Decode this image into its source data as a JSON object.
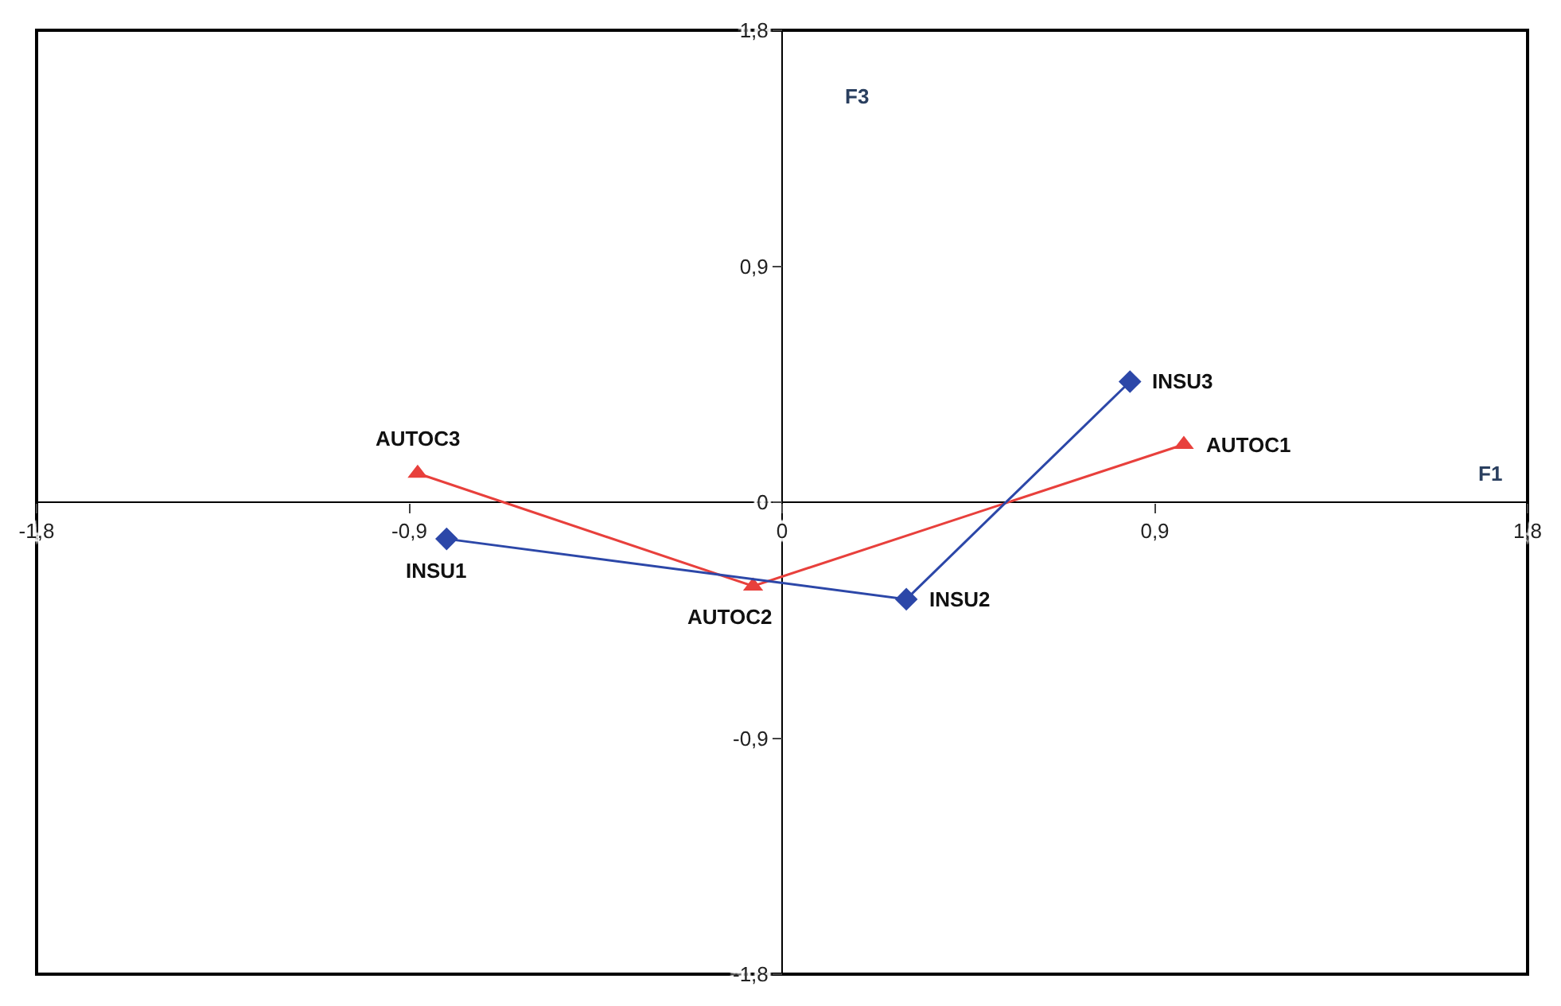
{
  "chart_data": {
    "type": "line",
    "xlabel": "F1",
    "ylabel": "F3",
    "xlim": [
      -1.8,
      1.8
    ],
    "ylim": [
      -1.8,
      1.8
    ],
    "xticks": [
      {
        "value": -1.8,
        "label": "-1,8"
      },
      {
        "value": -0.9,
        "label": "-0,9"
      },
      {
        "value": 0,
        "label": "0"
      },
      {
        "value": 0.9,
        "label": "0,9"
      },
      {
        "value": 1.8,
        "label": "1,8"
      }
    ],
    "yticks": [
      {
        "value": -1.8,
        "label": "-1,8"
      },
      {
        "value": -0.9,
        "label": "-0,9"
      },
      {
        "value": 0,
        "label": "0"
      },
      {
        "value": 0.9,
        "label": "0,9"
      },
      {
        "value": 1.8,
        "label": "1,8"
      }
    ],
    "grid": false,
    "series": [
      {
        "color": "#e8403c",
        "marker": "triangle",
        "x": [
          -0.88,
          -0.07,
          0.97
        ],
        "values": [
          0.11,
          -0.32,
          0.22
        ]
      },
      {
        "color": "#2c47a8",
        "marker": "diamond",
        "x": [
          -0.81,
          0.3,
          0.84
        ],
        "values": [
          -0.14,
          -0.37,
          0.46
        ]
      }
    ],
    "annotations": [
      {
        "text": "AUTOC3",
        "x": -0.88,
        "y": 0.11
      },
      {
        "text": "AUTOC2",
        "x": -0.07,
        "y": -0.32
      },
      {
        "text": "AUTOC1",
        "x": 0.97,
        "y": 0.22
      },
      {
        "text": "INSU1",
        "x": -0.81,
        "y": -0.14
      },
      {
        "text": "INSU2",
        "x": 0.3,
        "y": -0.37
      },
      {
        "text": "INSU3",
        "x": 0.84,
        "y": 0.46
      }
    ]
  }
}
